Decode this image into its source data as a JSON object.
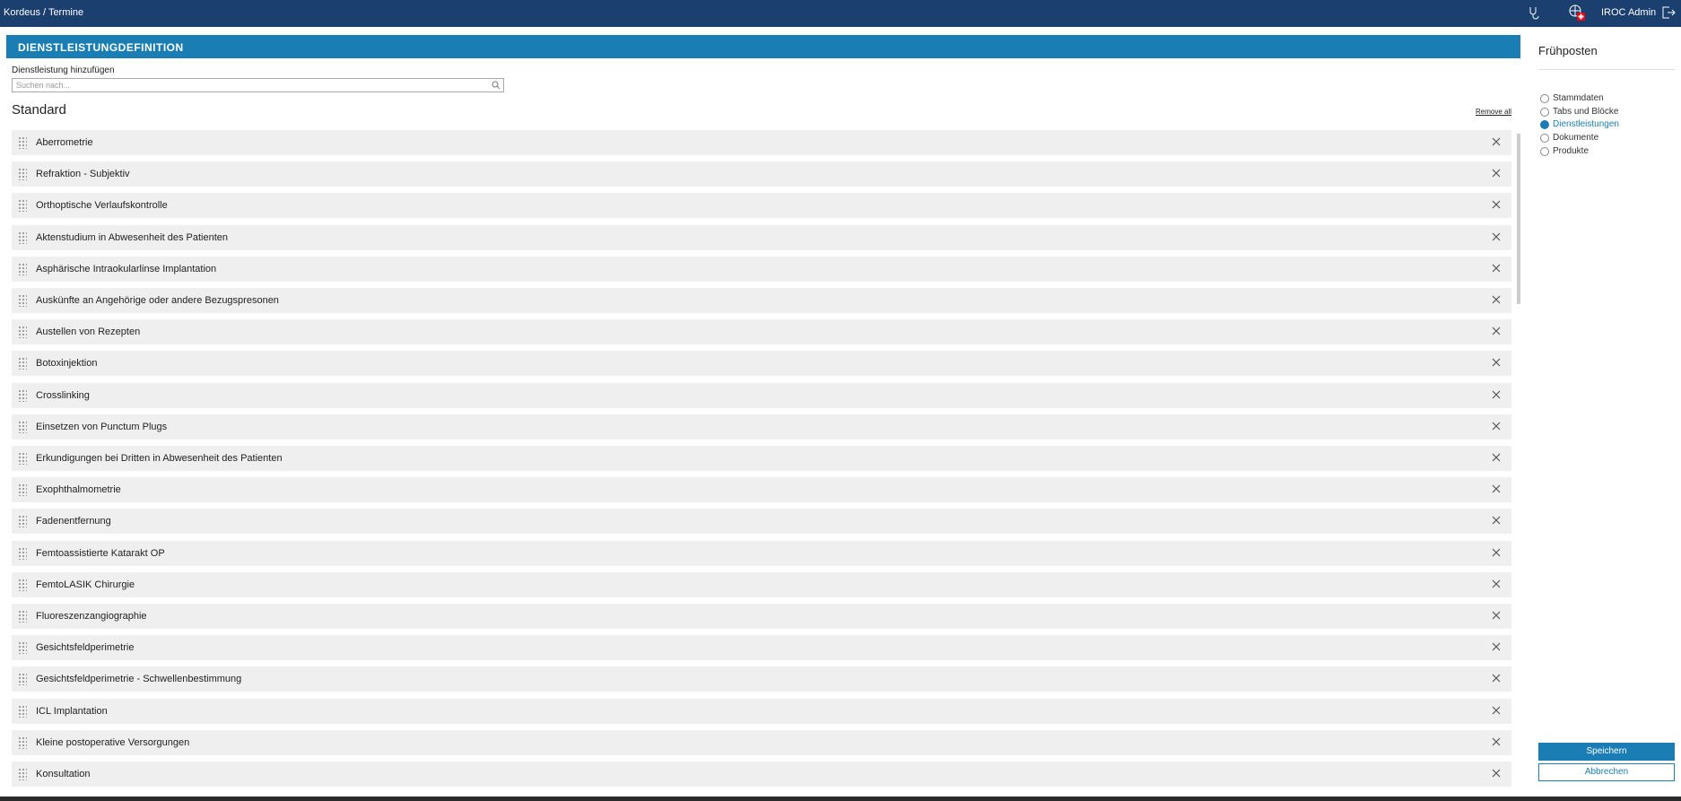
{
  "header": {
    "breadcrumb": "Kordeus / Termine",
    "user": "IROC Admin"
  },
  "panel": {
    "title": "DIENSTLEISTUNGDEFINITION",
    "add_label": "Dienstleistung hinzufügen",
    "search_placeholder": "Suchen nach...",
    "section_title": "Standard",
    "remove_all": "Remove all",
    "items": [
      "Aberrometrie",
      "Refraktion - Subjektiv",
      "Orthoptische Verlaufskontrolle",
      "Aktenstudium in Abwesenheit des Patienten",
      "Asphärische Intraokularlinse Implantation",
      "Auskünfte an Angehörige oder andere Bezugspresonen",
      "Austellen von Rezepten",
      "Botoxinjektion",
      "Crosslinking",
      "Einsetzen von Punctum Plugs",
      "Erkundigungen bei Dritten in Abwesenheit des Patienten",
      "Exophthalmometrie",
      "Fadenentfernung",
      "Femtoassistierte Katarakt OP",
      "FemtoLASIK Chirurgie",
      "Fluoreszenzangiographie",
      "Gesichtsfeldperimetrie",
      "Gesichtsfeldperimetrie - Schwellenbestimmung",
      "ICL Implantation",
      "Kleine postoperative Versorgungen",
      "Konsultation"
    ]
  },
  "sidebar": {
    "title": "Frühposten",
    "steps": [
      {
        "label": "Stammdaten",
        "active": false
      },
      {
        "label": "Tabs und Blöcke",
        "active": false
      },
      {
        "label": "Dienstleistungen",
        "active": true
      },
      {
        "label": "Dokumente",
        "active": false
      },
      {
        "label": "Produkte",
        "active": false
      }
    ],
    "save": "Speichern",
    "cancel": "Abbrechen"
  }
}
